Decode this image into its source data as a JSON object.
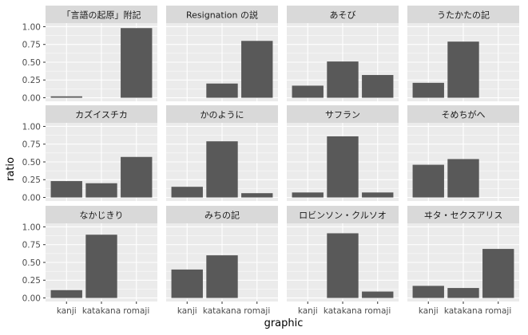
{
  "chart_data": {
    "type": "bar",
    "layout": "facet-grid",
    "xlabel": "graphic",
    "ylabel": "ratio",
    "ylim": [
      0,
      1.0
    ],
    "categories": [
      "kanji",
      "katakana",
      "romaji"
    ],
    "y_ticks": [
      "0.00",
      "0.25",
      "0.50",
      "0.75",
      "1.00"
    ],
    "bar_color": "#595959",
    "panel_background": "#ebebeb",
    "strip_background": "#d9d9d9",
    "panels": [
      {
        "title": "「言語の起原」附記",
        "values": [
          0.02,
          0.0,
          0.98
        ]
      },
      {
        "title": "Resignation の説",
        "values": [
          0.0,
          0.2,
          0.8
        ]
      },
      {
        "title": "あそび",
        "values": [
          0.17,
          0.51,
          0.32
        ]
      },
      {
        "title": "うたかたの記",
        "values": [
          0.21,
          0.79,
          0.0
        ]
      },
      {
        "title": "カズイスチカ",
        "values": [
          0.23,
          0.2,
          0.57
        ]
      },
      {
        "title": "かのように",
        "values": [
          0.15,
          0.79,
          0.06
        ]
      },
      {
        "title": "サフラン",
        "values": [
          0.07,
          0.86,
          0.07
        ]
      },
      {
        "title": "そめちがへ",
        "values": [
          0.46,
          0.54,
          0.0
        ]
      },
      {
        "title": "なかじきり",
        "values": [
          0.11,
          0.89,
          0.0
        ]
      },
      {
        "title": "みちの記",
        "values": [
          0.4,
          0.6,
          0.0
        ]
      },
      {
        "title": "ロビンソン・クルソオ",
        "values": [
          0.0,
          0.91,
          0.09
        ]
      },
      {
        "title": "ヰタ・セクスアリス",
        "values": [
          0.17,
          0.14,
          0.69
        ]
      }
    ]
  }
}
